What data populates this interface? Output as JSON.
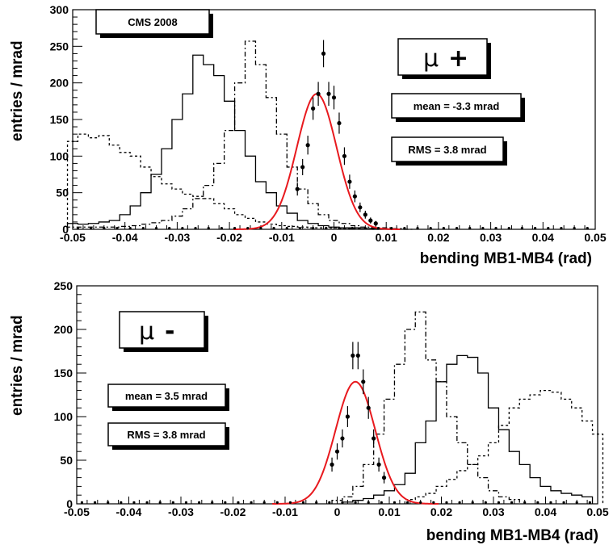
{
  "chart_data": [
    {
      "type": "line",
      "panel": "top",
      "xlabel": "bending MB1-MB4 (rad)",
      "ylabel": "entries / mrad",
      "xlim": [
        -0.05,
        0.05
      ],
      "ylim": [
        0,
        300
      ],
      "xticks": [
        -0.05,
        -0.04,
        -0.03,
        -0.02,
        -0.01,
        0,
        0.01,
        0.02,
        0.03,
        0.04,
        0.05
      ],
      "xtick_labels": [
        "-0.05",
        "-0.04",
        "-0.03",
        "-0.02",
        "-0.01",
        "0",
        "0.01",
        "0.02",
        "0.03",
        "0.04",
        "0.05"
      ],
      "yticks": [
        0,
        50,
        100,
        150,
        200,
        250,
        300
      ],
      "ytick_labels": [
        "0",
        "50",
        "100",
        "150",
        "200",
        "250",
        "300"
      ],
      "labels": {
        "experiment": "CMS 2008",
        "charge_symbol": "μ",
        "charge_sign": "+",
        "mean": "mean = -3.3 mrad",
        "rms": "RMS = 3.8 mrad"
      },
      "fit": {
        "mean": -0.0033,
        "sigma": 0.0038,
        "amplitude": 185,
        "color": "#e8191e"
      },
      "histograms": [
        {
          "style": "solid",
          "x": [
            -0.05,
            -0.048,
            -0.046,
            -0.044,
            -0.042,
            -0.04,
            -0.038,
            -0.036,
            -0.034,
            -0.032,
            -0.03,
            -0.028,
            -0.026,
            -0.024,
            -0.022,
            -0.02,
            -0.018,
            -0.016,
            -0.014,
            -0.012,
            -0.01,
            -0.008,
            -0.006,
            -0.004,
            -0.002,
            0,
            0.002,
            0.004,
            0.006,
            0.008,
            0.01
          ],
          "y": [
            8,
            7,
            8,
            10,
            12,
            20,
            32,
            50,
            75,
            110,
            150,
            185,
            238,
            225,
            210,
            175,
            135,
            100,
            65,
            50,
            32,
            22,
            12,
            8,
            5,
            3,
            2,
            2,
            1,
            1,
            0
          ]
        },
        {
          "style": "dashdot",
          "x": [
            -0.05,
            -0.048,
            -0.046,
            -0.044,
            -0.042,
            -0.04,
            -0.038,
            -0.036,
            -0.034,
            -0.032,
            -0.03,
            -0.028,
            -0.026,
            -0.024,
            -0.022,
            -0.02,
            -0.018,
            -0.016,
            -0.014,
            -0.012,
            -0.01,
            -0.008,
            -0.006,
            -0.004,
            -0.002,
            0,
            0.002,
            0.004,
            0.006,
            0.008,
            0.01,
            0.012,
            0.014
          ],
          "y": [
            3,
            3,
            3,
            3,
            3,
            4,
            5,
            7,
            9,
            12,
            18,
            28,
            42,
            60,
            90,
            135,
            200,
            257,
            225,
            180,
            130,
            85,
            55,
            35,
            20,
            12,
            8,
            5,
            3,
            2,
            2,
            1,
            0
          ]
        },
        {
          "style": "dotted",
          "x": [
            -0.05,
            -0.048,
            -0.046,
            -0.044,
            -0.042,
            -0.04,
            -0.038,
            -0.036,
            -0.034,
            -0.032,
            -0.03,
            -0.028,
            -0.026,
            -0.024,
            -0.022,
            -0.02,
            -0.018,
            -0.016,
            -0.014,
            -0.012,
            -0.01,
            -0.008,
            -0.006,
            -0.004,
            -0.002,
            0,
            0.002,
            0.004,
            0.006,
            0.008
          ],
          "y": [
            120,
            130,
            125,
            128,
            115,
            105,
            100,
            85,
            72,
            62,
            55,
            48,
            45,
            42,
            35,
            28,
            20,
            15,
            10,
            7,
            5,
            4,
            3,
            2,
            2,
            2,
            1,
            1,
            1,
            0
          ]
        }
      ],
      "points": {
        "x": [
          -0.007,
          -0.006,
          -0.005,
          -0.004,
          -0.003,
          -0.002,
          -0.001,
          0,
          0.001,
          0.002,
          0.003,
          0.004,
          0.005,
          0.006,
          0.007,
          0.008
        ],
        "y": [
          55,
          85,
          115,
          165,
          185,
          240,
          185,
          180,
          145,
          100,
          65,
          45,
          30,
          20,
          12,
          8
        ]
      }
    },
    {
      "type": "line",
      "panel": "bottom",
      "xlabel": "bending MB1-MB4 (rad)",
      "ylabel": "entries / mrad",
      "xlim": [
        -0.05,
        0.05
      ],
      "ylim": [
        0,
        250
      ],
      "xticks": [
        -0.05,
        -0.04,
        -0.03,
        -0.02,
        -0.01,
        0,
        0.01,
        0.02,
        0.03,
        0.04,
        0.05
      ],
      "xtick_labels": [
        "-0.05",
        "-0.04",
        "-0.03",
        "-0.02",
        "-0.01",
        "0",
        "0.01",
        "0.02",
        "0.03",
        "0.04",
        "0.05"
      ],
      "yticks": [
        0,
        50,
        100,
        150,
        200,
        250
      ],
      "ytick_labels": [
        "0",
        "50",
        "100",
        "150",
        "200",
        "250"
      ],
      "labels": {
        "charge_symbol": "μ",
        "charge_sign": "-",
        "mean": "mean = 3.5 mrad",
        "rms": "RMS = 3.8 mrad"
      },
      "fit": {
        "mean": 0.0035,
        "sigma": 0.0038,
        "amplitude": 140,
        "color": "#e8191e"
      },
      "histograms": [
        {
          "style": "dashdot",
          "x": [
            0.0,
            0.002,
            0.004,
            0.006,
            0.008,
            0.01,
            0.012,
            0.014,
            0.016,
            0.018,
            0.02,
            0.022,
            0.024,
            0.026,
            0.028,
            0.03,
            0.032,
            0.034
          ],
          "y": [
            4,
            8,
            20,
            45,
            80,
            120,
            160,
            200,
            220,
            165,
            140,
            100,
            70,
            45,
            30,
            15,
            8,
            5
          ]
        },
        {
          "style": "solid",
          "x": [
            0.002,
            0.004,
            0.006,
            0.008,
            0.01,
            0.012,
            0.014,
            0.016,
            0.018,
            0.02,
            0.022,
            0.024,
            0.026,
            0.028,
            0.03,
            0.032,
            0.034,
            0.036,
            0.038,
            0.04,
            0.042,
            0.044,
            0.046,
            0.048
          ],
          "y": [
            2,
            4,
            6,
            10,
            15,
            22,
            35,
            70,
            95,
            140,
            160,
            170,
            168,
            150,
            110,
            85,
            60,
            45,
            30,
            20,
            15,
            12,
            10,
            8
          ]
        },
        {
          "style": "dotted",
          "x": [
            0.014,
            0.016,
            0.018,
            0.02,
            0.022,
            0.024,
            0.026,
            0.028,
            0.03,
            0.032,
            0.034,
            0.036,
            0.038,
            0.04,
            0.042,
            0.044,
            0.046,
            0.048,
            0.05
          ],
          "y": [
            5,
            8,
            12,
            20,
            28,
            38,
            45,
            55,
            70,
            90,
            110,
            120,
            125,
            130,
            128,
            120,
            110,
            95,
            80
          ]
        }
      ],
      "points": {
        "x": [
          -0.001,
          0,
          0.001,
          0.002,
          0.003,
          0.004,
          0.005,
          0.006,
          0.007,
          0.008,
          0.009
        ],
        "y": [
          45,
          60,
          75,
          100,
          170,
          170,
          140,
          110,
          75,
          45,
          30
        ]
      }
    }
  ]
}
